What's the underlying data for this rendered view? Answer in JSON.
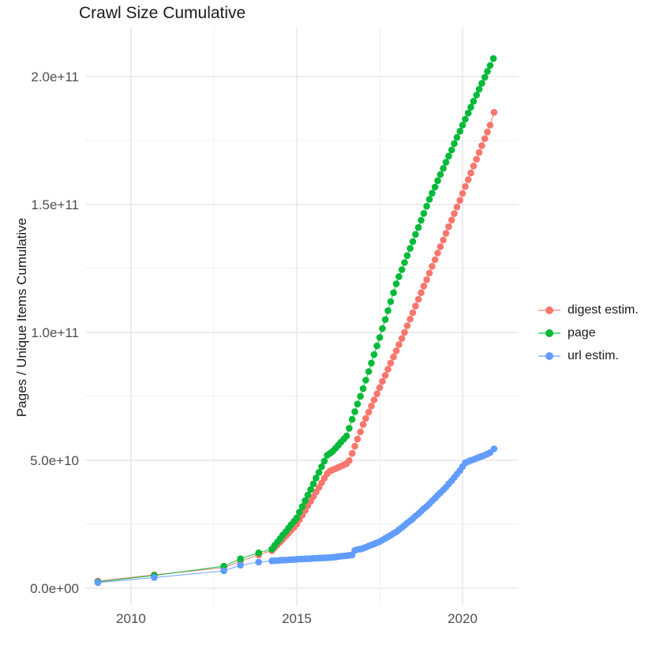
{
  "page": {
    "title": "Crawl Size Cumulative"
  },
  "colors": {
    "digest_estim": "#F8766D",
    "page_series": "#00BA38",
    "url_estim": "#619CFF",
    "grid_major": "#E4E4E4",
    "grid_minor": "#EFEFEF",
    "tick_text": "#4D4D4D",
    "title_text": "#1A1A1A",
    "background": "#FFFFFF"
  },
  "chart_data": {
    "type": "scatter",
    "title": "Crawl Size Cumulative",
    "xlabel": "",
    "ylabel": "Pages / Unique Items Cumulative",
    "values_unit": "1e9 pages (point values given in billions)",
    "grid": true,
    "legend_position": "right-center",
    "x_range": [
      2008.62,
      2021.69
    ],
    "y_range_e9": [
      -6.8,
      219.1
    ],
    "x_ticks": [
      {
        "label": "2010",
        "value": 2010
      },
      {
        "label": "2015",
        "value": 2015
      },
      {
        "label": "2020",
        "value": 2020
      }
    ],
    "x_minor": [
      2012.5,
      2017.5
    ],
    "y_ticks": [
      {
        "label": "0.0e+00",
        "value_e9": 0
      },
      {
        "label": "5.0e+10",
        "value_e9": 50
      },
      {
        "label": "1.0e+11",
        "value_e9": 100
      },
      {
        "label": "1.5e+11",
        "value_e9": 150
      },
      {
        "label": "2.0e+11",
        "value_e9": 200
      }
    ],
    "y_minor_e9": [
      25,
      75,
      125,
      175
    ],
    "series": [
      {
        "name": "digest estim.",
        "color": "#F8766D",
        "points": [
          [
            2009.0,
            2.8
          ],
          [
            2010.7,
            5.2
          ],
          [
            2012.8,
            8.0
          ],
          [
            2013.3,
            10.5
          ],
          [
            2013.85,
            13.0
          ],
          [
            2014.25,
            14.7
          ],
          [
            2014.33,
            15.8
          ],
          [
            2014.42,
            17.0
          ],
          [
            2014.5,
            18.1
          ],
          [
            2014.58,
            19.2
          ],
          [
            2014.67,
            20.4
          ],
          [
            2014.75,
            21.5
          ],
          [
            2014.83,
            22.7
          ],
          [
            2014.92,
            23.8
          ],
          [
            2015.0,
            25.0
          ],
          [
            2015.08,
            26.8
          ],
          [
            2015.17,
            28.6
          ],
          [
            2015.25,
            30.4
          ],
          [
            2015.33,
            32.2
          ],
          [
            2015.42,
            34.0
          ],
          [
            2015.5,
            35.8
          ],
          [
            2015.58,
            37.6
          ],
          [
            2015.67,
            39.4
          ],
          [
            2015.75,
            41.2
          ],
          [
            2015.83,
            43.0
          ],
          [
            2015.92,
            44.8
          ],
          [
            2016.0,
            45.8
          ],
          [
            2016.08,
            46.3
          ],
          [
            2016.17,
            46.7
          ],
          [
            2016.25,
            47.2
          ],
          [
            2016.33,
            47.7
          ],
          [
            2016.42,
            48.2
          ],
          [
            2016.5,
            48.7
          ],
          [
            2016.58,
            49.9
          ],
          [
            2016.67,
            52.7
          ],
          [
            2016.75,
            55.5
          ],
          [
            2016.83,
            58.3
          ],
          [
            2016.92,
            61.1
          ],
          [
            2017.0,
            64.0
          ],
          [
            2017.08,
            66.4
          ],
          [
            2017.17,
            68.8
          ],
          [
            2017.25,
            71.2
          ],
          [
            2017.33,
            73.6
          ],
          [
            2017.42,
            76.0
          ],
          [
            2017.5,
            78.4
          ],
          [
            2017.58,
            80.8
          ],
          [
            2017.67,
            83.2
          ],
          [
            2017.75,
            85.6
          ],
          [
            2017.83,
            88.0
          ],
          [
            2017.92,
            90.4
          ],
          [
            2018.0,
            92.8
          ],
          [
            2018.08,
            95.2
          ],
          [
            2018.17,
            97.6
          ],
          [
            2018.25,
            100.0
          ],
          [
            2018.33,
            102.6
          ],
          [
            2018.42,
            105.2
          ],
          [
            2018.5,
            107.7
          ],
          [
            2018.58,
            110.3
          ],
          [
            2018.67,
            112.9
          ],
          [
            2018.75,
            115.5
          ],
          [
            2018.83,
            118.1
          ],
          [
            2018.92,
            120.6
          ],
          [
            2019.0,
            123.2
          ],
          [
            2019.08,
            125.8
          ],
          [
            2019.17,
            128.4
          ],
          [
            2019.25,
            131.0
          ],
          [
            2019.33,
            133.5
          ],
          [
            2019.42,
            136.1
          ],
          [
            2019.5,
            138.7
          ],
          [
            2019.58,
            141.3
          ],
          [
            2019.67,
            143.9
          ],
          [
            2019.75,
            146.4
          ],
          [
            2019.83,
            149.0
          ],
          [
            2019.92,
            151.6
          ],
          [
            2020.0,
            154.3
          ],
          [
            2020.08,
            157.0
          ],
          [
            2020.17,
            159.7
          ],
          [
            2020.25,
            162.3
          ],
          [
            2020.33,
            165.0
          ],
          [
            2020.42,
            167.7
          ],
          [
            2020.5,
            170.3
          ],
          [
            2020.58,
            173.0
          ],
          [
            2020.67,
            175.7
          ],
          [
            2020.75,
            178.3
          ],
          [
            2020.83,
            181.0
          ],
          [
            2020.95,
            186.0
          ]
        ]
      },
      {
        "name": "page",
        "color": "#00BA38",
        "points": [
          [
            2009.0,
            2.5
          ],
          [
            2010.7,
            5.0
          ],
          [
            2012.8,
            8.6
          ],
          [
            2013.3,
            11.5
          ],
          [
            2013.85,
            13.8
          ],
          [
            2014.25,
            15.3
          ],
          [
            2014.33,
            16.7
          ],
          [
            2014.42,
            18.1
          ],
          [
            2014.5,
            19.4
          ],
          [
            2014.58,
            20.8
          ],
          [
            2014.67,
            22.1
          ],
          [
            2014.75,
            23.5
          ],
          [
            2014.83,
            24.8
          ],
          [
            2014.92,
            26.2
          ],
          [
            2015.0,
            27.5
          ],
          [
            2015.08,
            29.7
          ],
          [
            2015.17,
            31.9
          ],
          [
            2015.25,
            34.2
          ],
          [
            2015.33,
            36.4
          ],
          [
            2015.42,
            38.6
          ],
          [
            2015.5,
            40.8
          ],
          [
            2015.58,
            43.1
          ],
          [
            2015.67,
            45.3
          ],
          [
            2015.75,
            47.5
          ],
          [
            2015.83,
            49.7
          ],
          [
            2015.92,
            52.0
          ],
          [
            2016.0,
            52.7
          ],
          [
            2016.08,
            53.5
          ],
          [
            2016.17,
            54.7
          ],
          [
            2016.25,
            55.9
          ],
          [
            2016.33,
            57.1
          ],
          [
            2016.42,
            58.3
          ],
          [
            2016.5,
            59.5
          ],
          [
            2016.58,
            62.5
          ],
          [
            2016.67,
            66.0
          ],
          [
            2016.75,
            69.0
          ],
          [
            2016.83,
            72.0
          ],
          [
            2016.92,
            75.0
          ],
          [
            2017.0,
            78.0
          ],
          [
            2017.08,
            81.3
          ],
          [
            2017.17,
            84.7
          ],
          [
            2017.25,
            88.0
          ],
          [
            2017.33,
            91.3
          ],
          [
            2017.42,
            94.7
          ],
          [
            2017.5,
            98.0
          ],
          [
            2017.58,
            101.5
          ],
          [
            2017.67,
            105.0
          ],
          [
            2017.75,
            108.5
          ],
          [
            2017.83,
            112.0
          ],
          [
            2017.92,
            115.5
          ],
          [
            2018.0,
            119.0
          ],
          [
            2018.08,
            121.8
          ],
          [
            2018.17,
            124.5
          ],
          [
            2018.25,
            127.3
          ],
          [
            2018.33,
            130.0
          ],
          [
            2018.42,
            132.8
          ],
          [
            2018.5,
            135.5
          ],
          [
            2018.58,
            138.3
          ],
          [
            2018.67,
            141.0
          ],
          [
            2018.75,
            143.8
          ],
          [
            2018.83,
            146.5
          ],
          [
            2018.92,
            149.3
          ],
          [
            2019.0,
            152.0
          ],
          [
            2019.08,
            154.4
          ],
          [
            2019.17,
            156.8
          ],
          [
            2019.25,
            159.3
          ],
          [
            2019.33,
            161.7
          ],
          [
            2019.42,
            164.1
          ],
          [
            2019.5,
            166.5
          ],
          [
            2019.58,
            168.9
          ],
          [
            2019.67,
            171.3
          ],
          [
            2019.75,
            173.8
          ],
          [
            2019.83,
            176.2
          ],
          [
            2019.92,
            178.6
          ],
          [
            2020.0,
            181.0
          ],
          [
            2020.08,
            183.3
          ],
          [
            2020.17,
            185.7
          ],
          [
            2020.25,
            188.0
          ],
          [
            2020.33,
            190.3
          ],
          [
            2020.42,
            192.7
          ],
          [
            2020.5,
            195.0
          ],
          [
            2020.58,
            197.3
          ],
          [
            2020.67,
            199.7
          ],
          [
            2020.75,
            202.0
          ],
          [
            2020.83,
            204.3
          ],
          [
            2020.93,
            207.0
          ]
        ]
      },
      {
        "name": "url estim.",
        "color": "#619CFF",
        "points": [
          [
            2009.0,
            2.2
          ],
          [
            2010.7,
            4.2
          ],
          [
            2012.8,
            6.8
          ],
          [
            2013.3,
            9.0
          ],
          [
            2013.85,
            10.2
          ],
          [
            2014.25,
            10.7
          ],
          [
            2014.33,
            10.8
          ],
          [
            2014.42,
            10.8
          ],
          [
            2014.5,
            10.9
          ],
          [
            2014.58,
            11.0
          ],
          [
            2014.67,
            11.0
          ],
          [
            2014.75,
            11.1
          ],
          [
            2014.83,
            11.2
          ],
          [
            2014.92,
            11.2
          ],
          [
            2015.0,
            11.3
          ],
          [
            2015.08,
            11.4
          ],
          [
            2015.17,
            11.4
          ],
          [
            2015.25,
            11.5
          ],
          [
            2015.33,
            11.5
          ],
          [
            2015.42,
            11.6
          ],
          [
            2015.5,
            11.7
          ],
          [
            2015.58,
            11.7
          ],
          [
            2015.67,
            11.8
          ],
          [
            2015.75,
            11.8
          ],
          [
            2015.83,
            11.9
          ],
          [
            2015.92,
            11.9
          ],
          [
            2016.0,
            12.0
          ],
          [
            2016.08,
            12.1
          ],
          [
            2016.17,
            12.2
          ],
          [
            2016.25,
            12.4
          ],
          [
            2016.33,
            12.5
          ],
          [
            2016.42,
            12.6
          ],
          [
            2016.5,
            12.7
          ],
          [
            2016.58,
            12.9
          ],
          [
            2016.67,
            13.0
          ],
          [
            2016.75,
            14.8
          ],
          [
            2016.83,
            15.1
          ],
          [
            2016.92,
            15.3
          ],
          [
            2017.0,
            15.6
          ],
          [
            2017.08,
            16.0
          ],
          [
            2017.17,
            16.5
          ],
          [
            2017.25,
            16.9
          ],
          [
            2017.33,
            17.3
          ],
          [
            2017.42,
            17.8
          ],
          [
            2017.5,
            18.2
          ],
          [
            2017.58,
            18.8
          ],
          [
            2017.67,
            19.5
          ],
          [
            2017.75,
            20.1
          ],
          [
            2017.83,
            20.7
          ],
          [
            2017.92,
            21.4
          ],
          [
            2018.0,
            22.0
          ],
          [
            2018.08,
            22.9
          ],
          [
            2018.17,
            23.7
          ],
          [
            2018.25,
            24.6
          ],
          [
            2018.33,
            25.5
          ],
          [
            2018.42,
            26.3
          ],
          [
            2018.5,
            27.2
          ],
          [
            2018.58,
            28.2
          ],
          [
            2018.67,
            29.1
          ],
          [
            2018.75,
            30.1
          ],
          [
            2018.83,
            31.1
          ],
          [
            2018.92,
            32.0
          ],
          [
            2019.0,
            33.0
          ],
          [
            2019.08,
            34.1
          ],
          [
            2019.17,
            35.2
          ],
          [
            2019.25,
            36.3
          ],
          [
            2019.33,
            37.3
          ],
          [
            2019.42,
            38.4
          ],
          [
            2019.5,
            39.5
          ],
          [
            2019.58,
            40.8
          ],
          [
            2019.67,
            42.0
          ],
          [
            2019.75,
            43.3
          ],
          [
            2019.83,
            44.6
          ],
          [
            2019.92,
            46.0
          ],
          [
            2020.0,
            47.5
          ],
          [
            2020.08,
            49.0
          ],
          [
            2020.17,
            49.5
          ],
          [
            2020.25,
            50.0
          ],
          [
            2020.33,
            50.3
          ],
          [
            2020.42,
            50.8
          ],
          [
            2020.5,
            51.2
          ],
          [
            2020.58,
            51.6
          ],
          [
            2020.67,
            52.0
          ],
          [
            2020.75,
            52.5
          ],
          [
            2020.83,
            53.0
          ],
          [
            2020.95,
            54.5
          ]
        ]
      }
    ]
  }
}
